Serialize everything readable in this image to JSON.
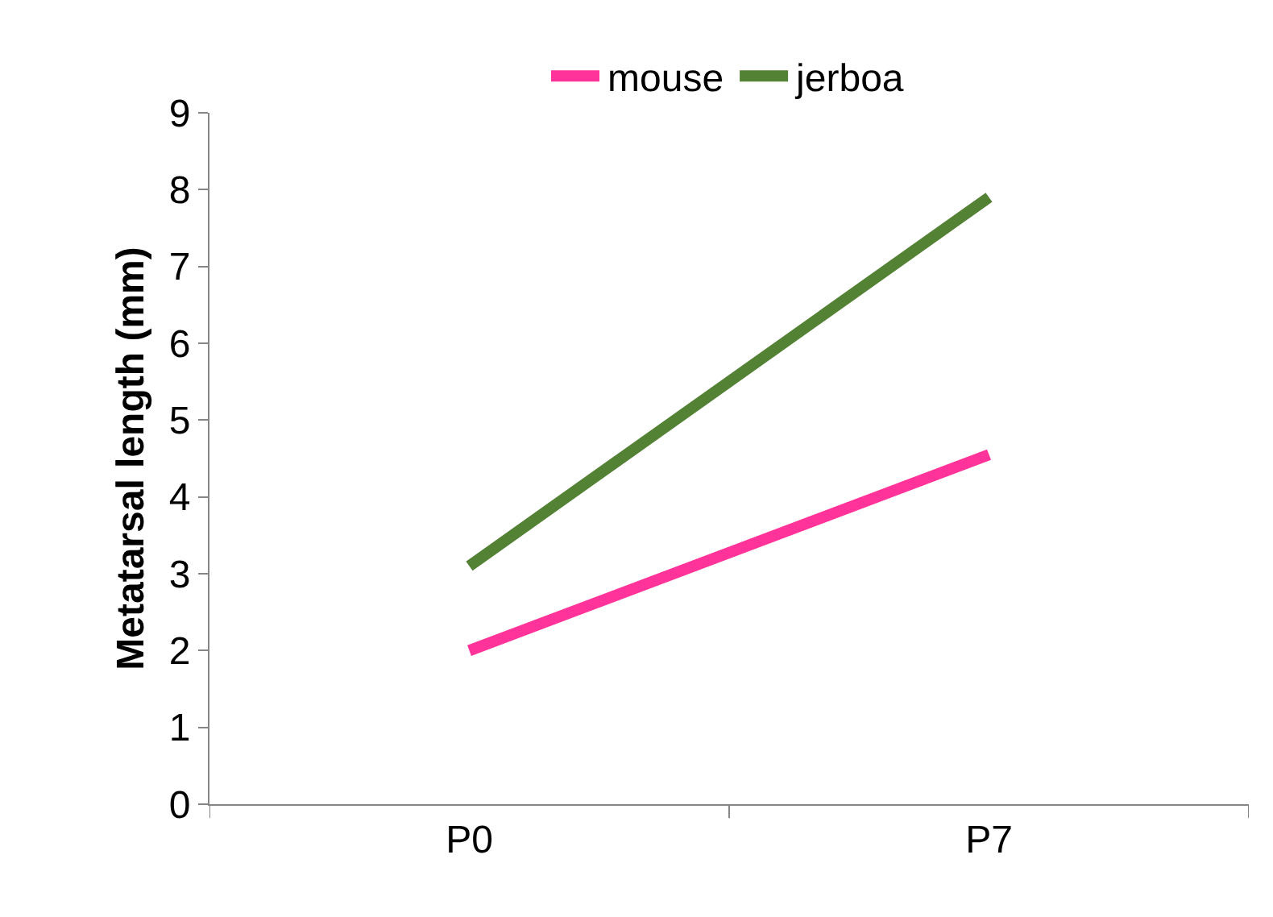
{
  "chart_data": {
    "type": "line",
    "ylabel": "Metatarsal length (mm)",
    "categories": [
      "P0",
      "P7"
    ],
    "series": [
      {
        "name": "mouse",
        "color": "#ff3399",
        "values": [
          2.0,
          4.55
        ]
      },
      {
        "name": "jerboa",
        "color": "#548235",
        "values": [
          3.1,
          7.9
        ]
      }
    ],
    "ylim": [
      0,
      9
    ],
    "yticks": [
      0,
      1,
      2,
      3,
      4,
      5,
      6,
      7,
      8,
      9
    ],
    "grid": false,
    "legend": "top",
    "marker": "none",
    "line_style": "solid"
  }
}
